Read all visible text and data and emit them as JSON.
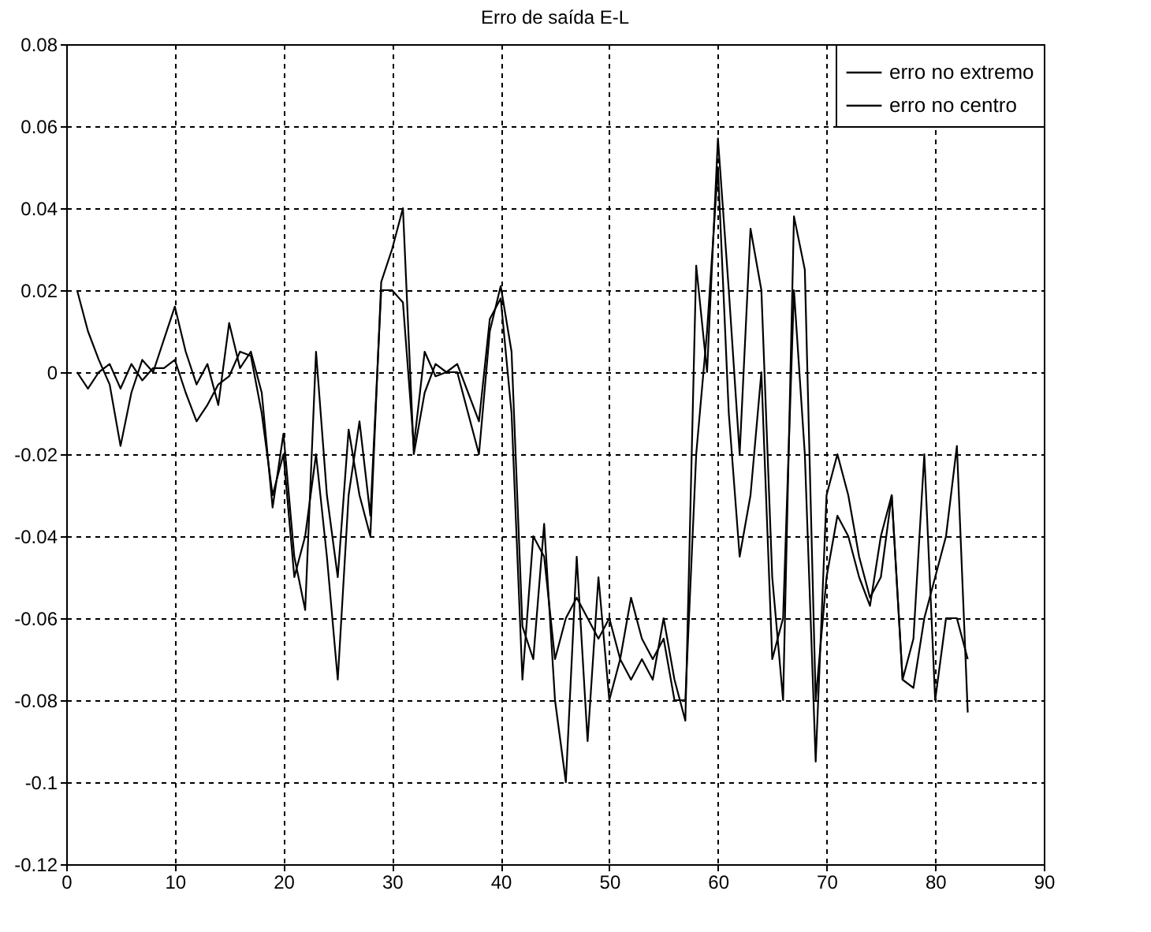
{
  "chart_data": {
    "type": "line",
    "title": "Erro de saída E-L",
    "x": [
      1,
      2,
      3,
      4,
      5,
      6,
      7,
      8,
      9,
      10,
      11,
      12,
      13,
      14,
      15,
      16,
      17,
      18,
      19,
      20,
      21,
      22,
      23,
      24,
      25,
      26,
      27,
      28,
      29,
      30,
      31,
      32,
      33,
      34,
      35,
      36,
      37,
      38,
      39,
      40,
      41,
      42,
      43,
      44,
      45,
      46,
      47,
      48,
      49,
      50,
      51,
      52,
      53,
      54,
      55,
      56,
      57,
      58,
      59,
      60,
      61,
      62,
      63,
      64,
      65,
      66,
      67,
      68,
      69,
      70,
      71,
      72,
      73,
      74,
      75,
      76,
      77,
      78,
      79,
      80,
      81,
      82,
      83
    ],
    "series": [
      {
        "name": "erro no extremo",
        "color": "#000000",
        "values": [
          0,
          -0.004,
          0,
          0.002,
          -0.004,
          0.002,
          -0.002,
          0.001,
          0.001,
          0.003,
          -0.005,
          -0.012,
          -0.008,
          -0.003,
          -0.001,
          0.005,
          0.004,
          -0.01,
          -0.03,
          -0.02,
          -0.05,
          -0.04,
          -0.02,
          -0.045,
          -0.075,
          -0.03,
          -0.012,
          -0.035,
          0.02,
          0.02,
          0.017,
          -0.018,
          0.005,
          -0.001,
          0,
          0.002,
          -0.005,
          -0.012,
          0.013,
          0.018,
          -0.01,
          -0.075,
          -0.04,
          -0.045,
          -0.07,
          -0.06,
          -0.055,
          -0.06,
          -0.065,
          -0.06,
          -0.07,
          -0.055,
          -0.065,
          -0.07,
          -0.065,
          -0.08,
          -0.08,
          -0.02,
          0.01,
          0.05,
          -0.01,
          -0.045,
          -0.03,
          0,
          -0.07,
          -0.06,
          0.02,
          -0.02,
          -0.095,
          -0.03,
          -0.02,
          -0.03,
          -0.045,
          -0.055,
          -0.05,
          -0.03,
          -0.075,
          -0.065,
          -0.02,
          -0.08,
          -0.06,
          -0.06,
          -0.07
        ]
      },
      {
        "name": "erro no centro",
        "color": "#000000",
        "values": [
          0.02,
          0.01,
          0.003,
          -0.003,
          -0.018,
          -0.005,
          0.003,
          0,
          0.008,
          0.016,
          0.005,
          -0.003,
          0.002,
          -0.008,
          0.012,
          0.001,
          0.005,
          -0.005,
          -0.033,
          -0.015,
          -0.045,
          -0.058,
          0.005,
          -0.03,
          -0.05,
          -0.014,
          -0.03,
          -0.04,
          0.022,
          0.03,
          0.04,
          -0.02,
          -0.005,
          0.002,
          0,
          0,
          -0.01,
          -0.02,
          0.01,
          0.021,
          0.005,
          -0.062,
          -0.07,
          -0.037,
          -0.08,
          -0.1,
          -0.045,
          -0.09,
          -0.05,
          -0.08,
          -0.07,
          -0.075,
          -0.07,
          -0.075,
          -0.06,
          -0.075,
          -0.085,
          0.026,
          0,
          0.057,
          0.02,
          -0.02,
          0.035,
          0.02,
          -0.05,
          -0.08,
          0.038,
          0.025,
          -0.08,
          -0.05,
          -0.035,
          -0.04,
          -0.05,
          -0.057,
          -0.04,
          -0.03,
          -0.075,
          -0.077,
          -0.06,
          -0.05,
          -0.04,
          -0.018,
          -0.083
        ]
      }
    ],
    "xlim": [
      0,
      90
    ],
    "xticks": [
      0,
      10,
      20,
      30,
      40,
      50,
      60,
      70,
      80,
      90
    ],
    "ylim": [
      -0.12,
      0.08
    ],
    "yticks": [
      -0.12,
      -0.1,
      -0.08,
      -0.06,
      -0.04,
      -0.02,
      0,
      0.02,
      0.04,
      0.06,
      0.08
    ],
    "grid": true,
    "legend": "top right",
    "marker": "none",
    "line_style": "solid"
  }
}
